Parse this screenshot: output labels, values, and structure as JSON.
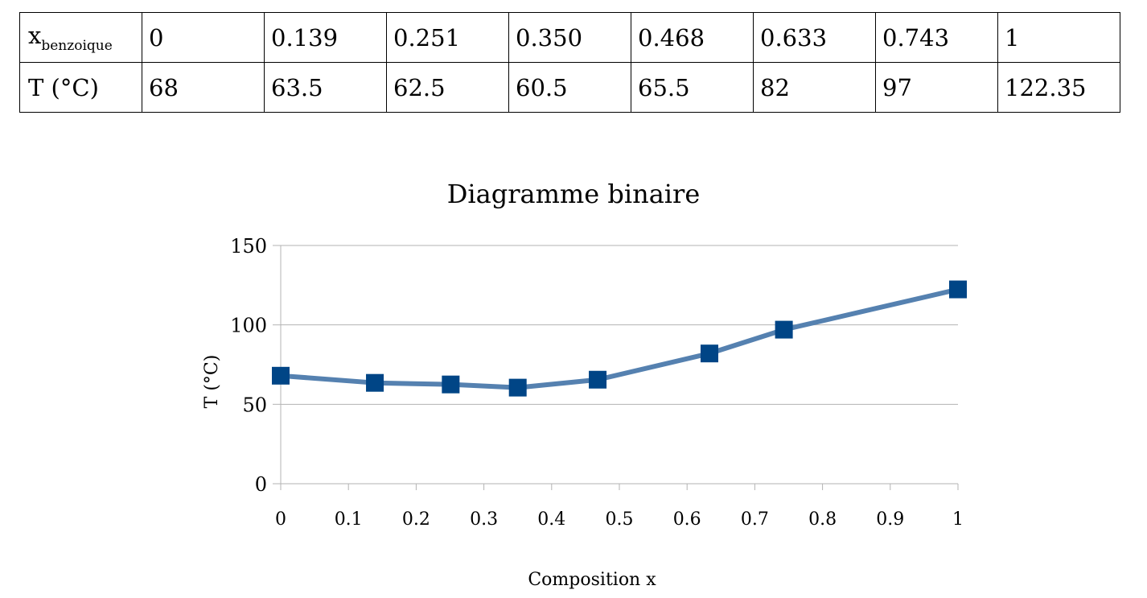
{
  "table": {
    "row_x": {
      "label_main": "x",
      "label_sub": "benzoique",
      "values": [
        "0",
        "0.139",
        "0.251",
        "0.350",
        "0.468",
        "0.633",
        "0.743",
        "1"
      ]
    },
    "row_t": {
      "label": "T (°C)",
      "values": [
        "68",
        "63.5",
        "62.5",
        "60.5",
        "65.5",
        "82",
        "97",
        "122.35"
      ]
    }
  },
  "chart_data": {
    "type": "line",
    "title": "Diagramme binaire",
    "xlabel": "Composition x",
    "ylabel": "T (°C)",
    "xlim": [
      0,
      1
    ],
    "ylim": [
      0,
      150
    ],
    "x_ticks": [
      "0",
      "0.1",
      "0.2",
      "0.3",
      "0.4",
      "0.5",
      "0.6",
      "0.7",
      "0.8",
      "0.9",
      "1"
    ],
    "y_ticks": [
      "0",
      "50",
      "100",
      "150"
    ],
    "grid": "horizontal",
    "series": [
      {
        "x": [
          0,
          0.139,
          0.251,
          0.35,
          0.468,
          0.633,
          0.743,
          1
        ],
        "y": [
          68,
          63.5,
          62.5,
          60.5,
          65.5,
          82,
          97,
          122.35
        ],
        "line_color": "#5581b0",
        "marker_color": "#004586",
        "marker": "square"
      }
    ]
  }
}
